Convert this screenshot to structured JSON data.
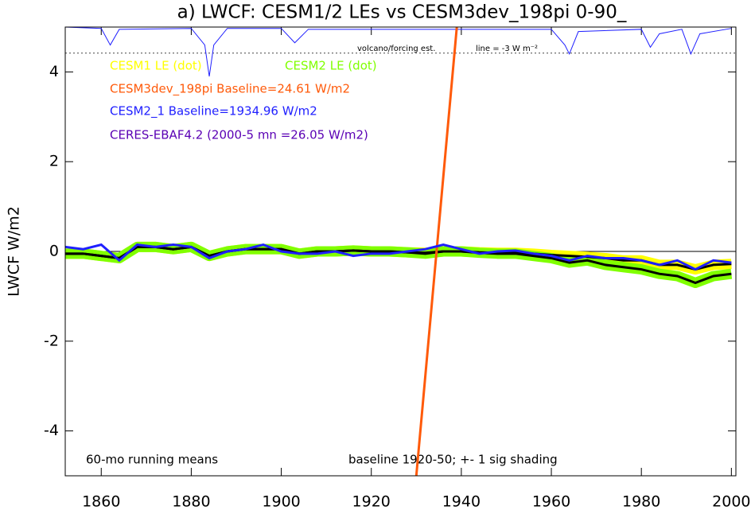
{
  "chart_data": {
    "type": "line",
    "title": "a) LWCF: CESM1/2 LEs vs CESM3dev_198pi 0-90_",
    "y_label": "LWCF W/m2",
    "annotations": [
      "60-mo running means",
      "baseline 1920-50; +- 1 sig shading",
      "volcano/forcing est.",
      "line = -3 W m⁻²"
    ],
    "xlim": [
      1852,
      2001
    ],
    "xticks": [
      1860,
      1880,
      1900,
      1920,
      1940,
      1960,
      1980,
      2000
    ],
    "ylim": [
      -5,
      5
    ],
    "yticks": [
      -4,
      -2,
      0,
      2,
      4
    ],
    "zero_line": true,
    "mean_color": "#000000",
    "series": [
      {
        "name": "CESM1 LE (dot)",
        "color": "#ffff00",
        "style": "band",
        "x": [
          1852,
          1856,
          1860,
          1864,
          1868,
          1872,
          1876,
          1880,
          1884,
          1888,
          1892,
          1896,
          1900,
          1904,
          1908,
          1912,
          1916,
          1920,
          1924,
          1928,
          1932,
          1936,
          1940,
          1944,
          1948,
          1952,
          1956,
          1960,
          1964,
          1968,
          1972,
          1976,
          1980,
          1984,
          1988,
          1992,
          1996,
          2000
        ],
        "values": [
          -0.05,
          -0.05,
          -0.1,
          -0.15,
          0.1,
          0.1,
          0.05,
          0.1,
          -0.1,
          0.0,
          0.05,
          0.05,
          0.05,
          -0.05,
          0.0,
          0.0,
          0.02,
          0.0,
          0.0,
          -0.02,
          -0.03,
          0.0,
          0.0,
          -0.02,
          -0.03,
          -0.03,
          -0.05,
          -0.08,
          -0.1,
          -0.12,
          -0.15,
          -0.2,
          -0.2,
          -0.3,
          -0.3,
          -0.4,
          -0.3,
          -0.28
        ]
      },
      {
        "name": "CESM2 LE (dot)",
        "color": "#80ff00",
        "style": "band",
        "x": [
          1852,
          1856,
          1860,
          1864,
          1868,
          1872,
          1876,
          1880,
          1884,
          1888,
          1892,
          1896,
          1900,
          1904,
          1908,
          1912,
          1916,
          1920,
          1924,
          1928,
          1932,
          1936,
          1940,
          1944,
          1948,
          1952,
          1956,
          1960,
          1964,
          1968,
          1972,
          1976,
          1980,
          1984,
          1988,
          1992,
          1996,
          2000
        ],
        "values": [
          -0.05,
          -0.05,
          -0.1,
          -0.15,
          0.1,
          0.1,
          0.05,
          0.1,
          -0.1,
          0.0,
          0.05,
          0.05,
          0.05,
          -0.05,
          0.0,
          0.0,
          0.02,
          0.0,
          0.0,
          -0.02,
          -0.05,
          0.0,
          0.0,
          -0.03,
          -0.05,
          -0.05,
          -0.1,
          -0.15,
          -0.25,
          -0.2,
          -0.3,
          -0.35,
          -0.4,
          -0.5,
          -0.55,
          -0.7,
          -0.55,
          -0.5
        ]
      },
      {
        "name": "CESM3dev_198pi Baseline=24.61 W/m2",
        "color": "#ff5a0a",
        "style": "line",
        "x": [
          1930,
          1939
        ],
        "values": [
          -5,
          5
        ]
      },
      {
        "name": "CESM2_1 Baseline=1934.96 W/m2",
        "color": "#1f1fff",
        "style": "line",
        "x": [
          1852,
          1856,
          1860,
          1864,
          1868,
          1872,
          1876,
          1880,
          1884,
          1888,
          1892,
          1896,
          1900,
          1904,
          1908,
          1912,
          1916,
          1920,
          1924,
          1928,
          1932,
          1936,
          1940,
          1944,
          1948,
          1952,
          1956,
          1960,
          1964,
          1968,
          1972,
          1976,
          1980,
          1984,
          1988,
          1992,
          1996,
          2000
        ],
        "values": [
          0.1,
          0.05,
          0.15,
          -0.2,
          0.15,
          0.1,
          0.15,
          0.1,
          -0.15,
          0.0,
          0.05,
          0.15,
          0.0,
          -0.05,
          -0.05,
          0.0,
          -0.1,
          -0.05,
          -0.05,
          0.0,
          0.05,
          0.15,
          0.05,
          -0.05,
          0.0,
          0.02,
          -0.05,
          -0.1,
          -0.2,
          -0.1,
          -0.15,
          -0.15,
          -0.2,
          -0.3,
          -0.2,
          -0.4,
          -0.2,
          -0.25
        ]
      },
      {
        "name": "CERES-EBAF4.2 (2000-5 mn =26.05 W/m2)",
        "color": "#5a00b4",
        "style": "line",
        "x": [],
        "values": []
      }
    ],
    "forcing": {
      "color": "#1f1fff",
      "x": [
        1852,
        1860,
        1862,
        1864,
        1880,
        1883,
        1884,
        1885,
        1888,
        1900,
        1903,
        1906,
        1960,
        1963,
        1964,
        1966,
        1980,
        1982,
        1984,
        1989,
        1991,
        1993,
        2000
      ],
      "values": [
        5,
        4.97,
        4.6,
        4.95,
        4.97,
        4.6,
        3.9,
        4.6,
        4.97,
        4.97,
        4.65,
        4.95,
        4.95,
        4.6,
        4.4,
        4.9,
        4.95,
        4.55,
        4.85,
        4.95,
        4.4,
        4.85,
        4.97
      ]
    },
    "reference_line": 4.42
  }
}
